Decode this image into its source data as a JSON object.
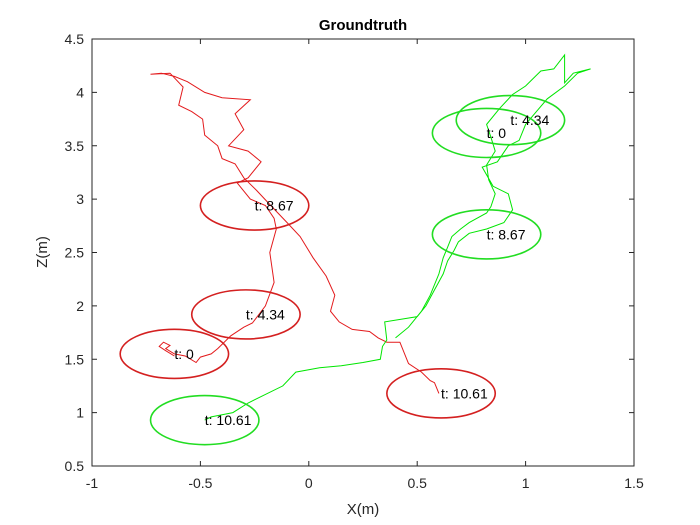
{
  "chart_data": {
    "type": "line",
    "title": "Groundtruth",
    "xlabel": "X(m)",
    "ylabel": "Z(m)",
    "xlim": [
      -1,
      1.5
    ],
    "ylim": [
      0.5,
      4.5
    ],
    "xticks": [
      -1,
      -0.5,
      0,
      0.5,
      1,
      1.5
    ],
    "xtick_labels": [
      "-1",
      "-0.5",
      "0",
      "0.5",
      "1",
      "1.5"
    ],
    "yticks": [
      0.5,
      1,
      1.5,
      2,
      2.5,
      3,
      3.5,
      4,
      4.5
    ],
    "ytick_labels": [
      "0.5",
      "1",
      "1.5",
      "2",
      "2.5",
      "3",
      "3.5",
      "4",
      "4.5"
    ],
    "grid": false,
    "series": [
      {
        "color": "#e31a1c",
        "points": [
          [
            -0.62,
            1.53
          ],
          [
            -0.66,
            1.58
          ],
          [
            -0.69,
            1.62
          ],
          [
            -0.67,
            1.66
          ],
          [
            -0.64,
            1.63
          ],
          [
            -0.66,
            1.6
          ],
          [
            -0.62,
            1.55
          ],
          [
            -0.57,
            1.53
          ],
          [
            -0.52,
            1.47
          ],
          [
            -0.5,
            1.52
          ],
          [
            -0.45,
            1.55
          ],
          [
            -0.42,
            1.6
          ],
          [
            -0.36,
            1.72
          ],
          [
            -0.3,
            1.8
          ],
          [
            -0.26,
            1.84
          ],
          [
            -0.2,
            2.0
          ],
          [
            -0.16,
            2.22
          ],
          [
            -0.18,
            2.5
          ],
          [
            -0.15,
            2.72
          ],
          [
            -0.16,
            2.82
          ],
          [
            -0.2,
            2.94
          ],
          [
            -0.27,
            3.0
          ],
          [
            -0.33,
            3.15
          ],
          [
            -0.28,
            3.2
          ],
          [
            -0.22,
            3.35
          ],
          [
            -0.28,
            3.45
          ],
          [
            -0.37,
            3.5
          ],
          [
            -0.3,
            3.65
          ],
          [
            -0.34,
            3.8
          ],
          [
            -0.27,
            3.93
          ],
          [
            -0.4,
            3.95
          ],
          [
            -0.48,
            4.0
          ],
          [
            -0.56,
            4.1
          ],
          [
            -0.62,
            4.15
          ],
          [
            -0.68,
            4.18
          ],
          [
            -0.73,
            4.17
          ],
          [
            -0.64,
            4.18
          ],
          [
            -0.58,
            4.05
          ],
          [
            -0.6,
            3.88
          ],
          [
            -0.54,
            3.82
          ],
          [
            -0.49,
            3.75
          ],
          [
            -0.48,
            3.6
          ],
          [
            -0.42,
            3.5
          ],
          [
            -0.4,
            3.38
          ],
          [
            -0.34,
            3.33
          ],
          [
            -0.3,
            3.2
          ],
          [
            -0.24,
            3.08
          ],
          [
            -0.18,
            2.95
          ],
          [
            -0.1,
            2.78
          ],
          [
            -0.04,
            2.65
          ],
          [
            0.02,
            2.45
          ],
          [
            0.08,
            2.28
          ],
          [
            0.12,
            2.1
          ],
          [
            0.1,
            1.95
          ],
          [
            0.14,
            1.85
          ],
          [
            0.2,
            1.78
          ],
          [
            0.28,
            1.76
          ],
          [
            0.32,
            1.7
          ],
          [
            0.36,
            1.66
          ],
          [
            0.42,
            1.66
          ],
          [
            0.46,
            1.46
          ],
          [
            0.52,
            1.38
          ],
          [
            0.56,
            1.3
          ],
          [
            0.58,
            1.28
          ],
          [
            0.6,
            1.18
          ]
        ]
      },
      {
        "color": "#00e600",
        "points": [
          [
            -0.48,
            0.93
          ],
          [
            -0.45,
            0.96
          ],
          [
            -0.4,
            0.98
          ],
          [
            -0.35,
            1.0
          ],
          [
            -0.28,
            1.09
          ],
          [
            -0.22,
            1.15
          ],
          [
            -0.12,
            1.25
          ],
          [
            -0.06,
            1.38
          ],
          [
            0.05,
            1.42
          ],
          [
            0.15,
            1.44
          ],
          [
            0.25,
            1.47
          ],
          [
            0.33,
            1.5
          ],
          [
            0.34,
            1.62
          ],
          [
            0.36,
            1.68
          ],
          [
            0.35,
            1.85
          ],
          [
            0.5,
            1.9
          ],
          [
            0.54,
            2.0
          ],
          [
            0.58,
            2.15
          ],
          [
            0.62,
            2.3
          ],
          [
            0.64,
            2.42
          ],
          [
            0.67,
            2.52
          ],
          [
            0.69,
            2.6
          ],
          [
            0.74,
            2.68
          ],
          [
            0.82,
            2.72
          ],
          [
            0.9,
            2.78
          ],
          [
            0.94,
            2.9
          ],
          [
            0.92,
            3.05
          ],
          [
            0.85,
            3.12
          ],
          [
            0.8,
            3.3
          ],
          [
            0.87,
            3.35
          ],
          [
            0.92,
            3.5
          ],
          [
            0.97,
            3.55
          ],
          [
            1.0,
            3.7
          ],
          [
            1.05,
            3.82
          ],
          [
            1.1,
            3.94
          ],
          [
            1.18,
            4.06
          ],
          [
            1.24,
            4.18
          ],
          [
            1.3,
            4.22
          ],
          [
            1.22,
            4.18
          ],
          [
            1.18,
            4.09
          ],
          [
            1.18,
            4.35
          ],
          [
            1.13,
            4.22
          ],
          [
            1.07,
            4.2
          ],
          [
            1.0,
            4.06
          ],
          [
            0.94,
            3.98
          ],
          [
            0.88,
            3.85
          ],
          [
            0.82,
            3.7
          ],
          [
            0.84,
            3.58
          ],
          [
            0.86,
            3.45
          ],
          [
            0.82,
            3.32
          ],
          [
            0.83,
            3.18
          ],
          [
            0.86,
            3.05
          ],
          [
            0.84,
            2.93
          ],
          [
            0.82,
            2.87
          ],
          [
            0.74,
            2.78
          ],
          [
            0.7,
            2.72
          ],
          [
            0.66,
            2.65
          ],
          [
            0.64,
            2.55
          ],
          [
            0.62,
            2.45
          ],
          [
            0.6,
            2.3
          ],
          [
            0.56,
            2.1
          ],
          [
            0.52,
            1.95
          ],
          [
            0.46,
            1.8
          ],
          [
            0.4,
            1.7
          ]
        ]
      }
    ],
    "ellipses": [
      {
        "color": "#d42020",
        "cx": -0.62,
        "cy": 1.55,
        "rx": 0.25,
        "ry": 0.23,
        "label": "t: 0"
      },
      {
        "color": "#d42020",
        "cx": -0.29,
        "cy": 1.92,
        "rx": 0.25,
        "ry": 0.23,
        "label": "t: 4.34"
      },
      {
        "color": "#d42020",
        "cx": -0.25,
        "cy": 2.94,
        "rx": 0.25,
        "ry": 0.23,
        "label": "t: 8.67"
      },
      {
        "color": "#d42020",
        "cx": 0.61,
        "cy": 1.18,
        "rx": 0.25,
        "ry": 0.23,
        "label": "t: 10.61"
      },
      {
        "color": "#22dd22",
        "cx": 0.82,
        "cy": 3.62,
        "rx": 0.25,
        "ry": 0.23,
        "label": "t: 0"
      },
      {
        "color": "#22dd22",
        "cx": 0.93,
        "cy": 3.74,
        "rx": 0.25,
        "ry": 0.23,
        "label": "t: 4.34"
      },
      {
        "color": "#22dd22",
        "cx": 0.82,
        "cy": 2.67,
        "rx": 0.25,
        "ry": 0.23,
        "label": "t: 8.67"
      },
      {
        "color": "#22dd22",
        "cx": -0.48,
        "cy": 0.93,
        "rx": 0.25,
        "ry": 0.23,
        "label": "t: 10.61"
      }
    ]
  }
}
